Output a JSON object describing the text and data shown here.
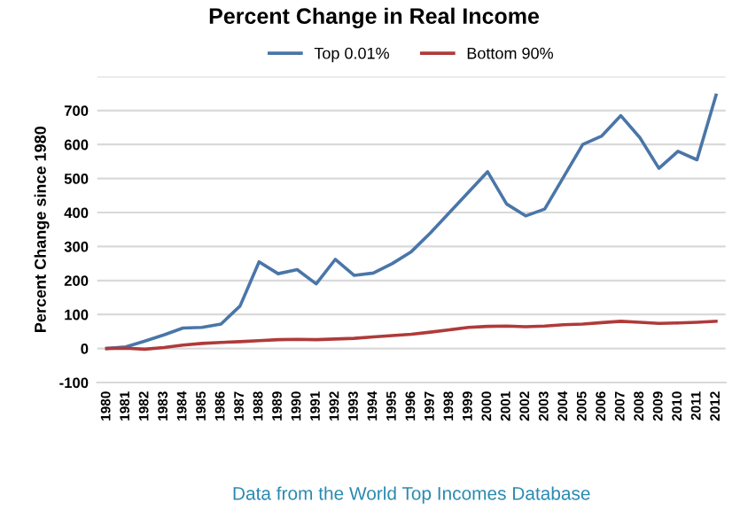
{
  "chart_data": {
    "type": "line",
    "title": "Percent Change in Real Income",
    "ylabel": "Percent Change since 1980",
    "categories": [
      "1980",
      "1981",
      "1982",
      "1983",
      "1984",
      "1985",
      "1986",
      "1987",
      "1988",
      "1989",
      "1990",
      "1991",
      "1992",
      "1993",
      "1994",
      "1995",
      "1996",
      "1997",
      "1998",
      "1999",
      "2000",
      "2001",
      "2002",
      "2003",
      "2004",
      "2005",
      "2006",
      "2007",
      "2008",
      "2009",
      "2010",
      "2011",
      "2012"
    ],
    "series": [
      {
        "name": "Top 0.01%",
        "color": "#4a76a8",
        "values": [
          0,
          5,
          22,
          40,
          60,
          62,
          72,
          125,
          255,
          220,
          232,
          190,
          262,
          215,
          222,
          250,
          285,
          340,
          400,
          460,
          520,
          425,
          390,
          410,
          505,
          600,
          625,
          685,
          620,
          530,
          580,
          555,
          745
        ]
      },
      {
        "name": "Bottom 90%",
        "color": "#b03a3a",
        "values": [
          0,
          1,
          -2,
          3,
          10,
          15,
          18,
          20,
          23,
          26,
          27,
          26,
          28,
          30,
          34,
          38,
          42,
          48,
          55,
          62,
          65,
          66,
          64,
          66,
          70,
          72,
          76,
          80,
          77,
          74,
          75,
          77,
          80
        ]
      }
    ],
    "ylim": [
      -100,
      800
    ],
    "yticks": [
      -100,
      0,
      100,
      200,
      300,
      400,
      500,
      600,
      700,
      {
        "value": 800,
        "label": null
      }
    ],
    "grid": "y",
    "legend": "top",
    "marker": "none",
    "line_style": "solid",
    "annotations": [
      "Data from the World Top Incomes Database"
    ]
  }
}
